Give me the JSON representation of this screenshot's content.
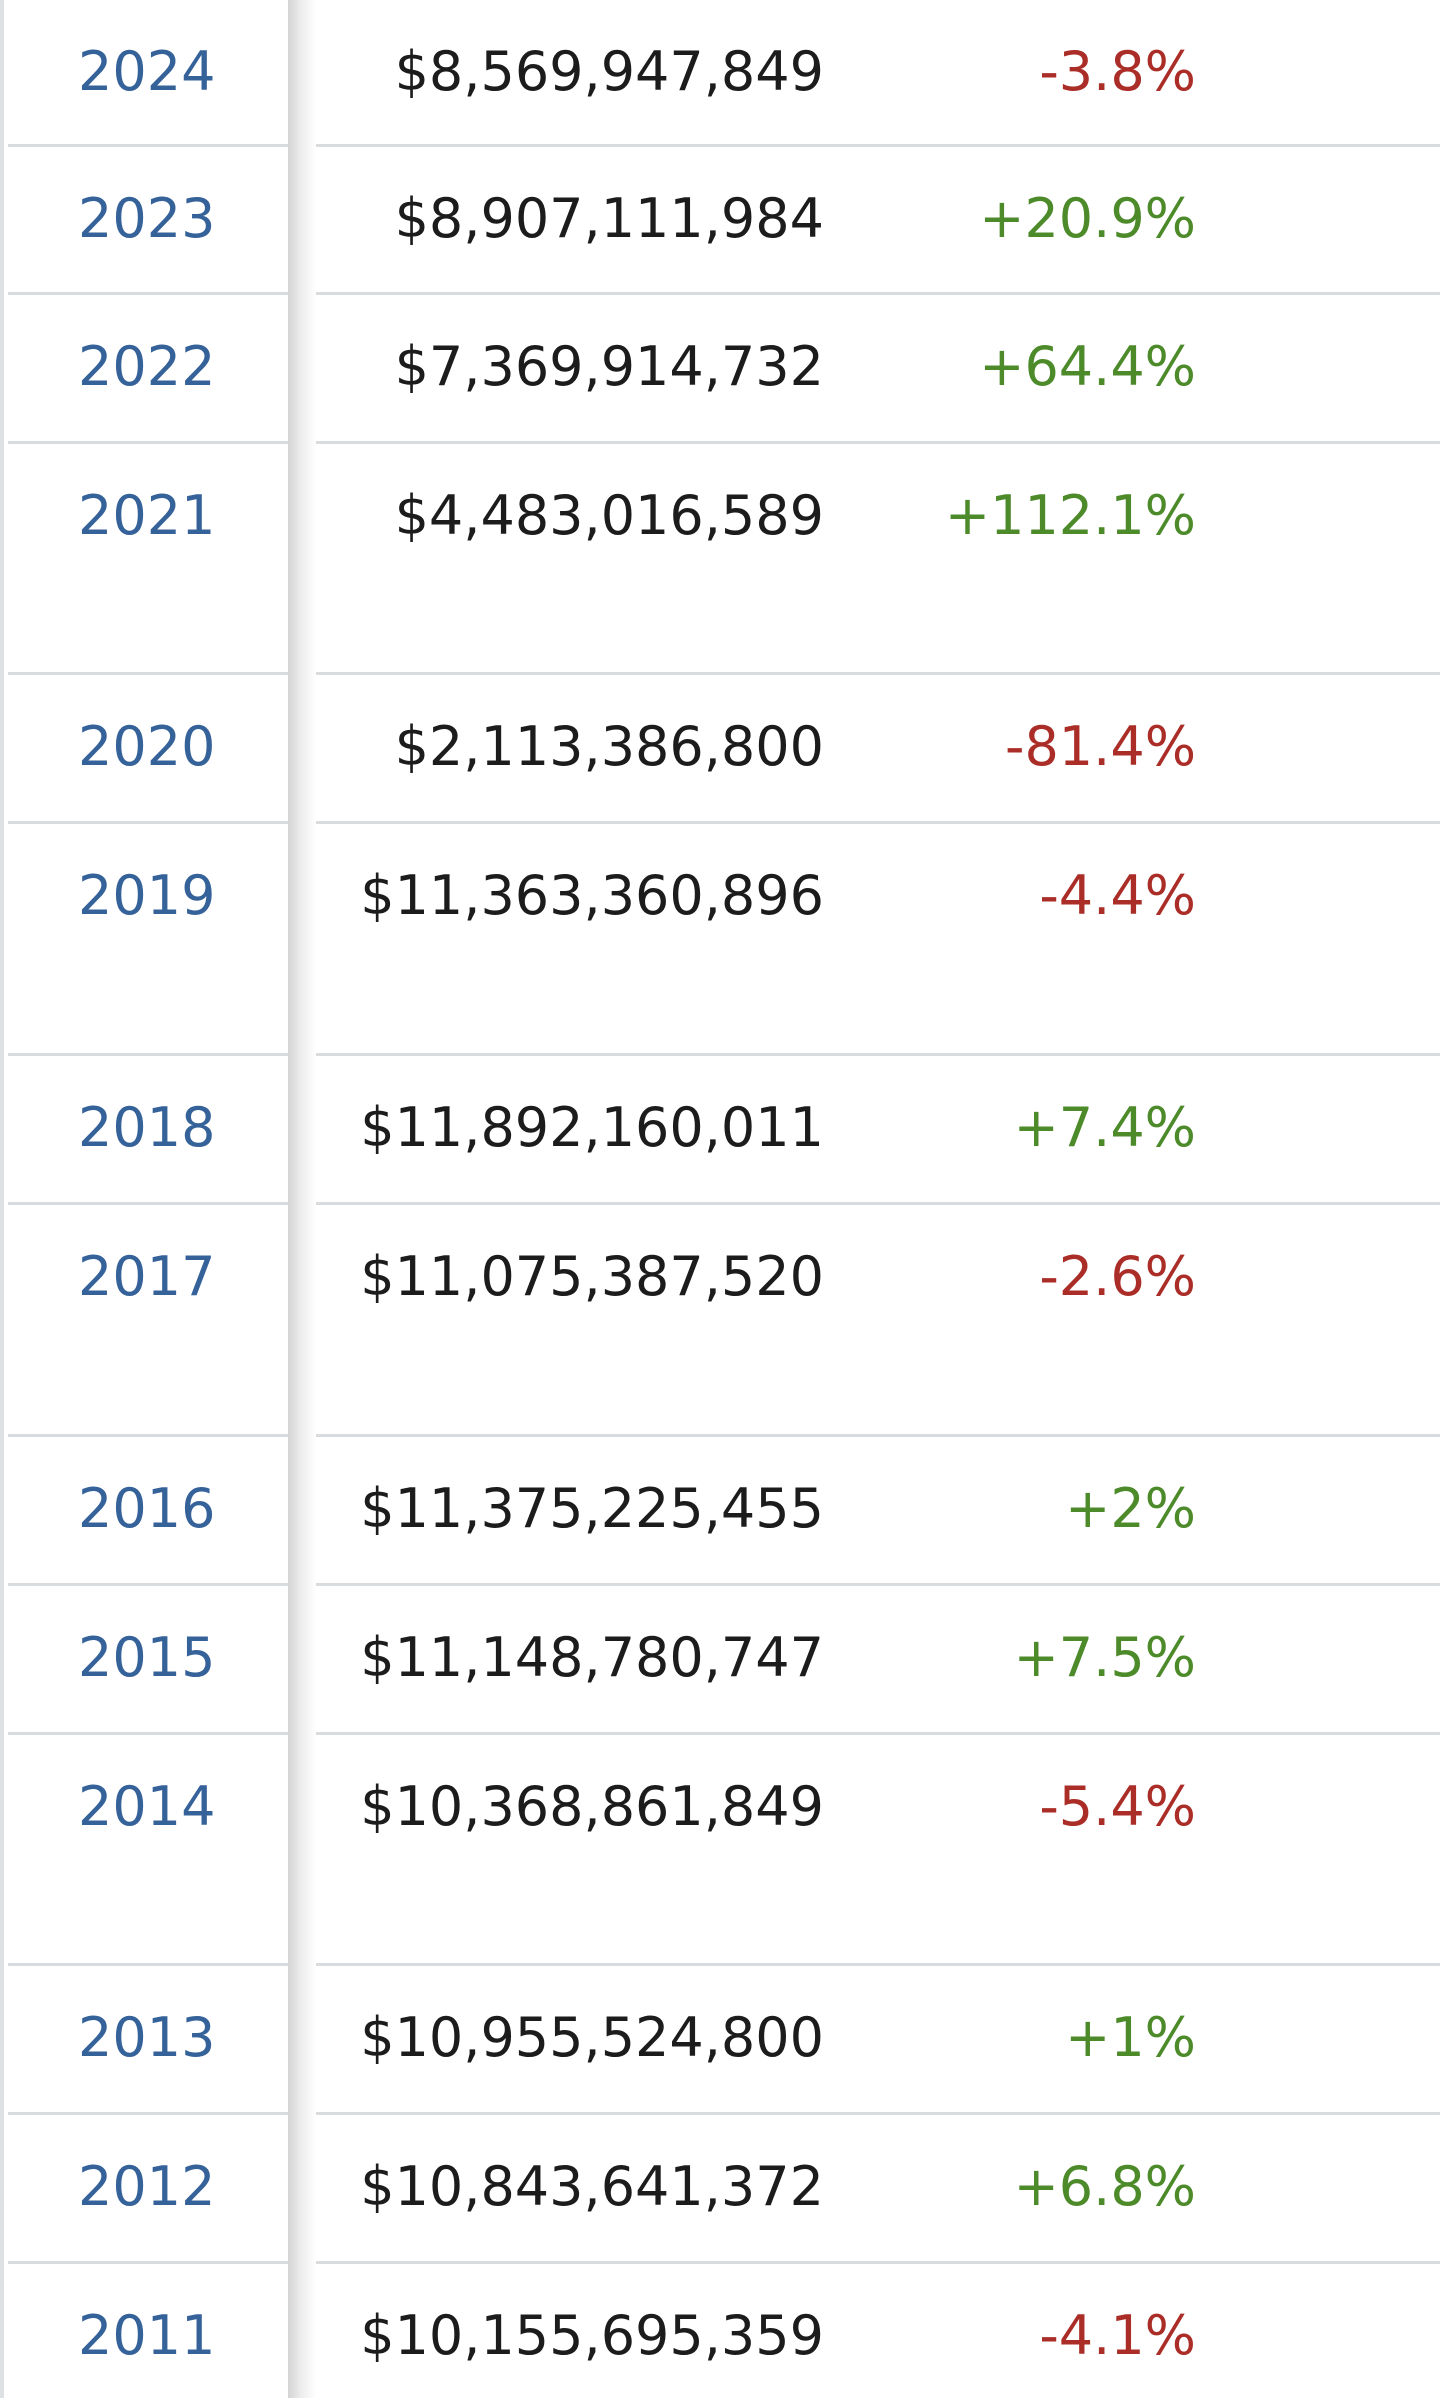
{
  "rows": [
    {
      "year": "2024",
      "gross": "$8,569,947,849",
      "change": "-3.8%",
      "dir": "neg"
    },
    {
      "year": "2023",
      "gross": "$8,907,111,984",
      "change": "+20.9%",
      "dir": "pos"
    },
    {
      "year": "2022",
      "gross": "$7,369,914,732",
      "change": "+64.4%",
      "dir": "pos"
    },
    {
      "year": "2021",
      "gross": "$4,483,016,589",
      "change": "+112.1%",
      "dir": "pos"
    },
    {
      "year": "2020",
      "gross": "$2,113,386,800",
      "change": "-81.4%",
      "dir": "neg"
    },
    {
      "year": "2019",
      "gross": "$11,363,360,896",
      "change": "-4.4%",
      "dir": "neg"
    },
    {
      "year": "2018",
      "gross": "$11,892,160,011",
      "change": "+7.4%",
      "dir": "pos"
    },
    {
      "year": "2017",
      "gross": "$11,075,387,520",
      "change": "-2.6%",
      "dir": "neg"
    },
    {
      "year": "2016",
      "gross": "$11,375,225,455",
      "change": "+2%",
      "dir": "pos"
    },
    {
      "year": "2015",
      "gross": "$11,148,780,747",
      "change": "+7.5%",
      "dir": "pos"
    },
    {
      "year": "2014",
      "gross": "$10,368,861,849",
      "change": "-5.4%",
      "dir": "neg"
    },
    {
      "year": "2013",
      "gross": "$10,955,524,800",
      "change": "+1%",
      "dir": "pos"
    },
    {
      "year": "2012",
      "gross": "$10,843,641,372",
      "change": "+6.8%",
      "dir": "pos"
    },
    {
      "year": "2011",
      "gross": "$10,155,695,359",
      "change": "-4.1%",
      "dir": "neg"
    }
  ],
  "colors": {
    "link": "#36629a",
    "positive": "#4c8a2a",
    "negative": "#ab2d27",
    "text": "#1c1c1c"
  }
}
